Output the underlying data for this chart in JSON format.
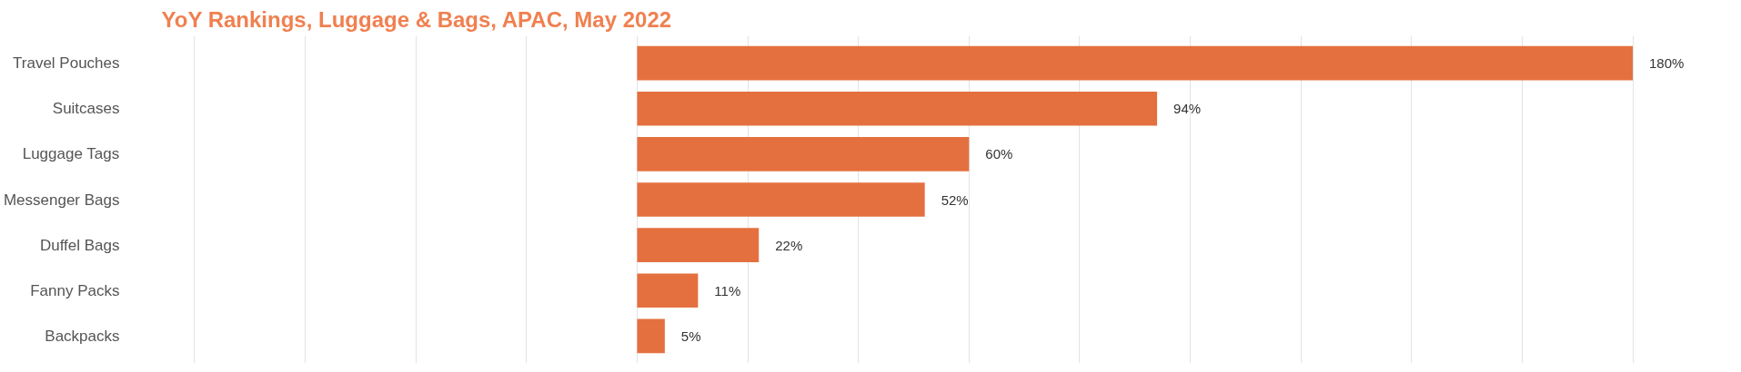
{
  "chart_data": {
    "type": "bar",
    "orientation": "horizontal",
    "title": "YoY Rankings, Luggage & Bags, APAC, May 2022",
    "categories": [
      "Travel Pouches",
      "Suitcases",
      "Luggage Tags",
      "Messenger Bags",
      "Duffel Bags",
      "Fanny Packs",
      "Backpacks"
    ],
    "values": [
      180,
      94,
      60,
      52,
      22,
      11,
      5
    ],
    "value_labels": [
      "180%",
      "94%",
      "60%",
      "52%",
      "22%",
      "11%",
      "5%"
    ],
    "color": "#e5703f",
    "xticks": [
      {
        "value": -80,
        "label": null
      },
      {
        "value": -60,
        "label": null
      },
      {
        "value": -40,
        "label": null
      },
      {
        "value": -20,
        "label": null
      },
      {
        "value": 0,
        "label": null
      },
      {
        "value": 20,
        "label": null
      },
      {
        "value": 40,
        "label": null
      },
      {
        "value": 60,
        "label": null
      },
      {
        "value": 80,
        "label": null
      },
      {
        "value": 100,
        "label": null
      },
      {
        "value": 120,
        "label": null
      },
      {
        "value": 140,
        "label": null
      },
      {
        "value": 160,
        "label": null
      },
      {
        "value": 180,
        "label": null
      }
    ],
    "tick_labels": "y",
    "grid": "x"
  }
}
